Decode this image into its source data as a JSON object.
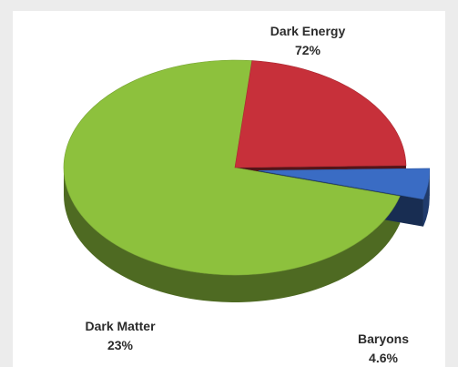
{
  "chart_data": {
    "type": "pie",
    "title": "",
    "style": "3d-exploded",
    "slices": [
      {
        "label": "Dark Energy",
        "value_text": "72%",
        "value": 72,
        "color": "#8dc13d"
      },
      {
        "label": "Dark Matter",
        "value_text": "23%",
        "value": 23,
        "color": "#c7303a"
      },
      {
        "label": "Baryons",
        "value_text": "4.6%",
        "value": 4.6,
        "color": "#3a6cc4"
      }
    ]
  }
}
